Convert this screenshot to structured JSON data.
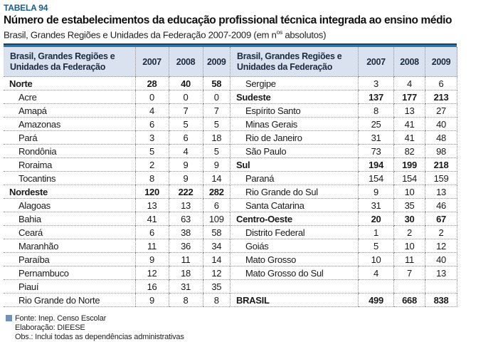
{
  "header": {
    "tag": "TABELA 94",
    "title": "Número de estabelecimentos da educação profissional técnica integrada ao ensino médio",
    "subtitle_prefix": "Brasil, Grandes Regiões e Unidades da Federação 2007-2009 (em n",
    "subtitle_sup": "os",
    "subtitle_suffix": " absolutos)"
  },
  "table": {
    "header_label": "Brasil, Grandes Regiões e Unidades da Federação",
    "years": [
      "2007",
      "2008",
      "2009"
    ],
    "left_rows": [
      {
        "type": "region",
        "name": "Norte",
        "values": [
          "28",
          "40",
          "58"
        ]
      },
      {
        "type": "state",
        "name": "Acre",
        "values": [
          "0",
          "0",
          "0"
        ]
      },
      {
        "type": "state",
        "name": "Amapá",
        "values": [
          "4",
          "7",
          "7"
        ]
      },
      {
        "type": "state",
        "name": "Amazonas",
        "values": [
          "6",
          "5",
          "5"
        ]
      },
      {
        "type": "state",
        "name": "Pará",
        "values": [
          "3",
          "6",
          "18"
        ]
      },
      {
        "type": "state",
        "name": "Rondônia",
        "values": [
          "5",
          "4",
          "5"
        ]
      },
      {
        "type": "state",
        "name": "Roraima",
        "values": [
          "2",
          "9",
          "9"
        ]
      },
      {
        "type": "state",
        "name": "Tocantins",
        "values": [
          "8",
          "9",
          "14"
        ]
      },
      {
        "type": "region",
        "name": "Nordeste",
        "values": [
          "120",
          "222",
          "282"
        ]
      },
      {
        "type": "state",
        "name": "Alagoas",
        "values": [
          "13",
          "13",
          "6"
        ]
      },
      {
        "type": "state",
        "name": "Bahia",
        "values": [
          "41",
          "63",
          "109"
        ]
      },
      {
        "type": "state",
        "name": "Ceará",
        "values": [
          "6",
          "38",
          "58"
        ]
      },
      {
        "type": "state",
        "name": "Maranhão",
        "values": [
          "11",
          "36",
          "34"
        ]
      },
      {
        "type": "state",
        "name": "Paraíba",
        "values": [
          "9",
          "11",
          "14"
        ]
      },
      {
        "type": "state",
        "name": "Pernambuco",
        "values": [
          "12",
          "18",
          "12"
        ]
      },
      {
        "type": "state",
        "name": "Piauí",
        "values": [
          "16",
          "31",
          "35"
        ]
      },
      {
        "type": "state",
        "name": "Rio Grande do Norte",
        "values": [
          "9",
          "8",
          "8"
        ]
      }
    ],
    "right_rows": [
      {
        "type": "state",
        "name": "Sergipe",
        "values": [
          "3",
          "4",
          "6"
        ]
      },
      {
        "type": "region",
        "name": "Sudeste",
        "values": [
          "137",
          "177",
          "213"
        ]
      },
      {
        "type": "state",
        "name": "Espírito Santo",
        "values": [
          "8",
          "13",
          "27"
        ]
      },
      {
        "type": "state",
        "name": "Minas Gerais",
        "values": [
          "25",
          "41",
          "40"
        ]
      },
      {
        "type": "state",
        "name": "Rio de Janeiro",
        "values": [
          "31",
          "41",
          "48"
        ]
      },
      {
        "type": "state",
        "name": "São Paulo",
        "values": [
          "73",
          "82",
          "98"
        ]
      },
      {
        "type": "region",
        "name": "Sul",
        "values": [
          "194",
          "199",
          "218"
        ]
      },
      {
        "type": "state",
        "name": "Paraná",
        "values": [
          "154",
          "154",
          "159"
        ]
      },
      {
        "type": "state",
        "name": "Rio Grande do Sul",
        "values": [
          "9",
          "10",
          "13"
        ]
      },
      {
        "type": "state",
        "name": "Santa Catarina",
        "values": [
          "31",
          "35",
          "46"
        ]
      },
      {
        "type": "region",
        "name": "Centro-Oeste",
        "values": [
          "20",
          "30",
          "67"
        ]
      },
      {
        "type": "state",
        "name": "Distrito Federal",
        "values": [
          "1",
          "2",
          "2"
        ]
      },
      {
        "type": "state",
        "name": "Goiás",
        "values": [
          "5",
          "10",
          "12"
        ]
      },
      {
        "type": "state",
        "name": "Mato Grosso",
        "values": [
          "10",
          "11",
          "40"
        ]
      },
      {
        "type": "state",
        "name": "Mato Grosso do Sul",
        "values": [
          "4",
          "7",
          "13"
        ]
      },
      {
        "type": "spacer",
        "name": "",
        "values": [
          "",
          "",
          ""
        ]
      },
      {
        "type": "total",
        "name": "BRASIL",
        "values": [
          "499",
          "668",
          "838"
        ]
      }
    ]
  },
  "footnote": {
    "lines": [
      "Fonte: Inep. Censo Escolar",
      "Elaboração: DIEESE",
      "Obs.: Inclui todas as dependências administrativas"
    ]
  },
  "colors": {
    "tag_blue": "#175d8d",
    "rule_dark_blue": "#0f436b",
    "rule_light_blue": "#2979ac",
    "header_background": "#d9e2ee",
    "legend_square": "#7391ba"
  }
}
